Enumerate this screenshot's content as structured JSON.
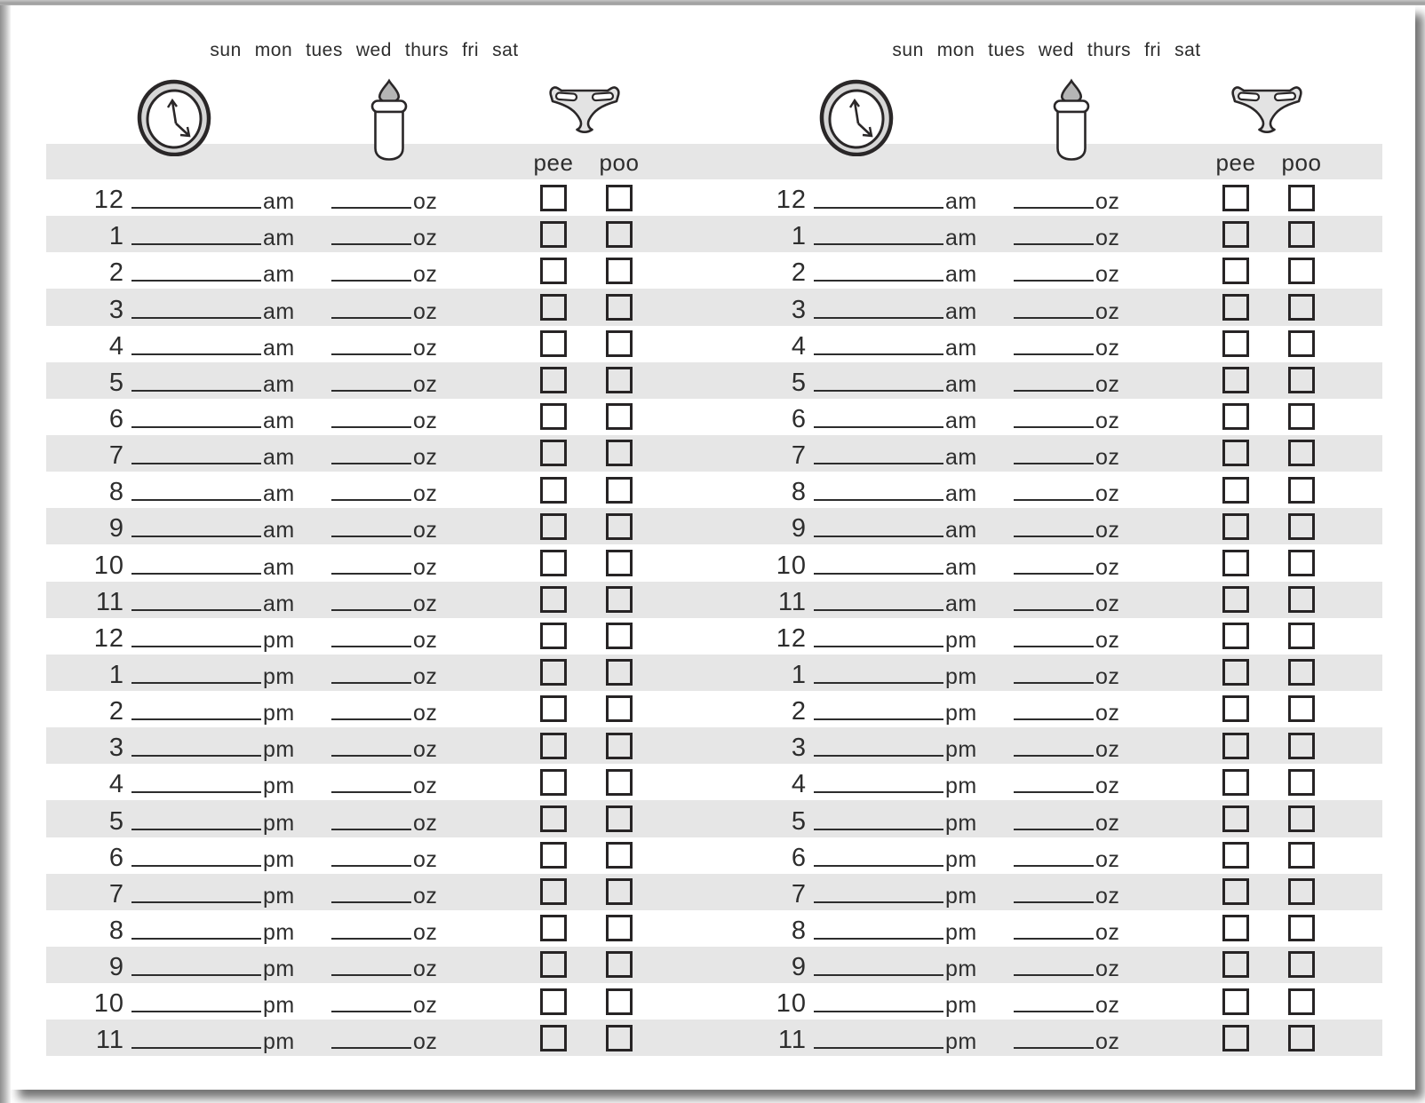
{
  "colors": {
    "row_shade": "#e6e6e6",
    "text": "#2d2d2d",
    "checkbox_border": "#272425",
    "icon_stroke": "#2a2728",
    "icon_fill": "#dadada",
    "frame": "#a5a5a5"
  },
  "panel": {
    "day_labels": [
      "sun",
      "mon",
      "tues",
      "wed",
      "thurs",
      "fri",
      "sat"
    ],
    "icon_names": [
      "clock-icon",
      "bottle-icon",
      "diaper-icon"
    ],
    "checkbox_headers": [
      "pee",
      "poo"
    ],
    "oz_suffix": "oz"
  },
  "rows": [
    {
      "hour": "12",
      "period": "am"
    },
    {
      "hour": "1",
      "period": "am"
    },
    {
      "hour": "2",
      "period": "am"
    },
    {
      "hour": "3",
      "period": "am"
    },
    {
      "hour": "4",
      "period": "am"
    },
    {
      "hour": "5",
      "period": "am"
    },
    {
      "hour": "6",
      "period": "am"
    },
    {
      "hour": "7",
      "period": "am"
    },
    {
      "hour": "8",
      "period": "am"
    },
    {
      "hour": "9",
      "period": "am"
    },
    {
      "hour": "10",
      "period": "am"
    },
    {
      "hour": "11",
      "period": "am"
    },
    {
      "hour": "12",
      "period": "pm"
    },
    {
      "hour": "1",
      "period": "pm"
    },
    {
      "hour": "2",
      "period": "pm"
    },
    {
      "hour": "3",
      "period": "pm"
    },
    {
      "hour": "4",
      "period": "pm"
    },
    {
      "hour": "5",
      "period": "pm"
    },
    {
      "hour": "6",
      "period": "pm"
    },
    {
      "hour": "7",
      "period": "pm"
    },
    {
      "hour": "8",
      "period": "pm"
    },
    {
      "hour": "9",
      "period": "pm"
    },
    {
      "hour": "10",
      "period": "pm"
    },
    {
      "hour": "11",
      "period": "pm"
    }
  ]
}
